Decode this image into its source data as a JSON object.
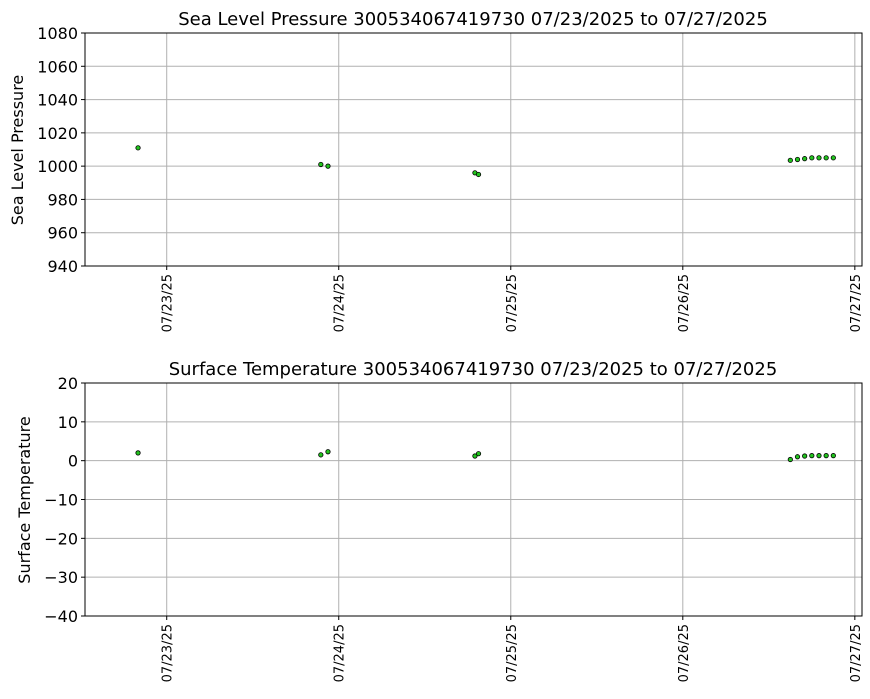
{
  "chart_data": [
    {
      "type": "scatter",
      "title": "Sea Level Pressure 300534067419730  07/23/2025 to 07/27/2025",
      "xlabel": "",
      "ylabel": "Sea Level Pressure",
      "ylim": [
        940,
        1080
      ],
      "yticks": [
        940,
        960,
        980,
        1000,
        1020,
        1040,
        1060,
        1080
      ],
      "xlim": [
        "2025-07-22T12:36",
        "2025-07-27T01:00"
      ],
      "xticks": [
        "2025-07-23",
        "2025-07-24",
        "2025-07-25",
        "2025-07-26",
        "2025-07-27"
      ],
      "xtick_labels": [
        "07/23/25",
        "07/24/25",
        "07/25/25",
        "07/26/25",
        "07/27/25"
      ],
      "grid": true,
      "marker_color": "#22c41e",
      "marker_edge": "#000000",
      "series": [
        {
          "x": [
            "2025-07-22T20:00",
            "2025-07-23T21:30",
            "2025-07-23T22:30",
            "2025-07-24T19:00",
            "2025-07-24T19:30",
            "2025-07-26T15:00",
            "2025-07-26T16:00",
            "2025-07-26T17:00",
            "2025-07-26T18:00",
            "2025-07-26T19:00",
            "2025-07-26T20:00",
            "2025-07-26T21:00"
          ],
          "y": [
            1011,
            1001,
            1000,
            996,
            995,
            1003.5,
            1004,
            1004.5,
            1005,
            1005,
            1005,
            1005
          ]
        }
      ]
    },
    {
      "type": "scatter",
      "title": "Surface Temperature 300534067419730  07/23/2025 to 07/27/2025",
      "xlabel": "",
      "ylabel": "Surface Temperature",
      "ylim": [
        -40,
        20
      ],
      "yticks": [
        -40,
        -30,
        -20,
        -10,
        0,
        10,
        20
      ],
      "ytick_labels": [
        "−40",
        "−30",
        "−20",
        "−10",
        "0",
        "10",
        "20"
      ],
      "xlim": [
        "2025-07-22T12:36",
        "2025-07-27T01:00"
      ],
      "xticks": [
        "2025-07-23",
        "2025-07-24",
        "2025-07-25",
        "2025-07-26",
        "2025-07-27"
      ],
      "xtick_labels": [
        "07/23/25",
        "07/24/25",
        "07/25/25",
        "07/26/25",
        "07/27/25"
      ],
      "grid": true,
      "marker_color": "#22c41e",
      "marker_edge": "#000000",
      "series": [
        {
          "x": [
            "2025-07-22T20:00",
            "2025-07-23T21:30",
            "2025-07-23T22:30",
            "2025-07-24T19:00",
            "2025-07-24T19:30",
            "2025-07-26T15:00",
            "2025-07-26T16:00",
            "2025-07-26T17:00",
            "2025-07-26T18:00",
            "2025-07-26T19:00",
            "2025-07-26T20:00",
            "2025-07-26T21:00"
          ],
          "y": [
            2,
            1.5,
            2.3,
            1.2,
            1.8,
            0.3,
            1,
            1.2,
            1.3,
            1.3,
            1.3,
            1.3
          ]
        }
      ]
    }
  ]
}
